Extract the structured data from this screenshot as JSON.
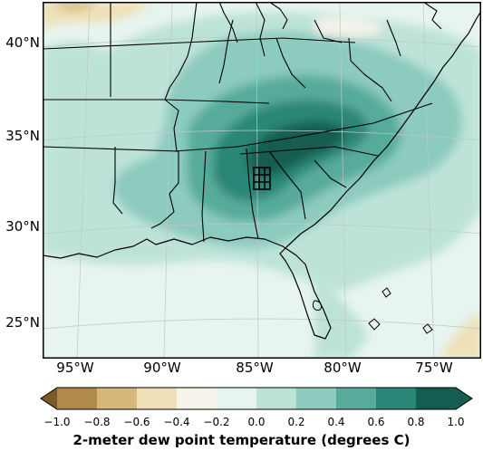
{
  "map": {
    "lat_labels": [
      "40°N",
      "35°N",
      "30°N",
      "25°N"
    ],
    "lon_labels": [
      "95°W",
      "90°W",
      "85°W",
      "80°W",
      "75°W"
    ],
    "marker": "grid-square"
  },
  "colorbar": {
    "title": "2-meter dew point temperature (degrees C)",
    "ticks": [
      "−1.0",
      "−0.8",
      "−0.6",
      "−0.4",
      "−0.2",
      "0.0",
      "0.2",
      "0.4",
      "0.6",
      "0.8",
      "1.0"
    ],
    "colors": [
      "#7a5a2b",
      "#b08a48",
      "#d8b77a",
      "#efe0b7",
      "#f5f3ea",
      "#e7f4ef",
      "#bde3d8",
      "#8ccbbe",
      "#57ab9b",
      "#2a8676",
      "#145d50"
    ],
    "extend": "both"
  }
}
